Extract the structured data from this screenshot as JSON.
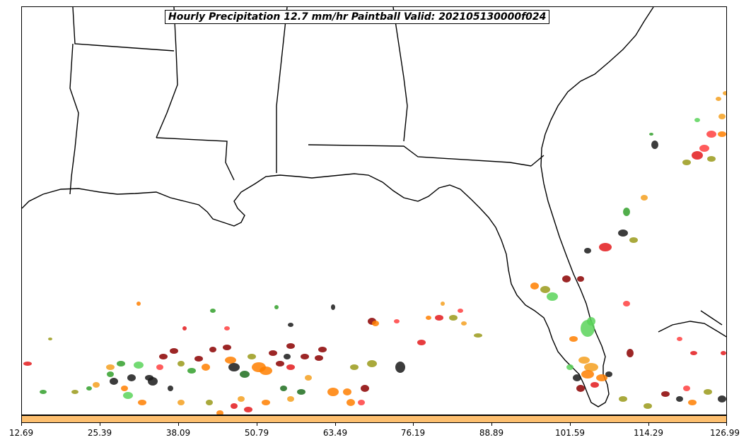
{
  "map": {
    "title": "Hourly Precipitation 12.7 mm/hr Paintball Valid: 202105130000f024",
    "colorbar_color": "#fdbf6f",
    "ticks": [
      "12.69",
      "25.39",
      "38.09",
      "50.79",
      "63.49",
      "76.19",
      "88.89",
      "101.59",
      "114.29",
      "126.99"
    ],
    "member_colors": [
      "#e31a1c",
      "#ff7f00",
      "#33a02c",
      "#1a1a1a",
      "#8b0000",
      "#9a9a1a",
      "#f4a020",
      "#1f6f1f",
      "#ff4040",
      "#5bd45b"
    ]
  }
}
